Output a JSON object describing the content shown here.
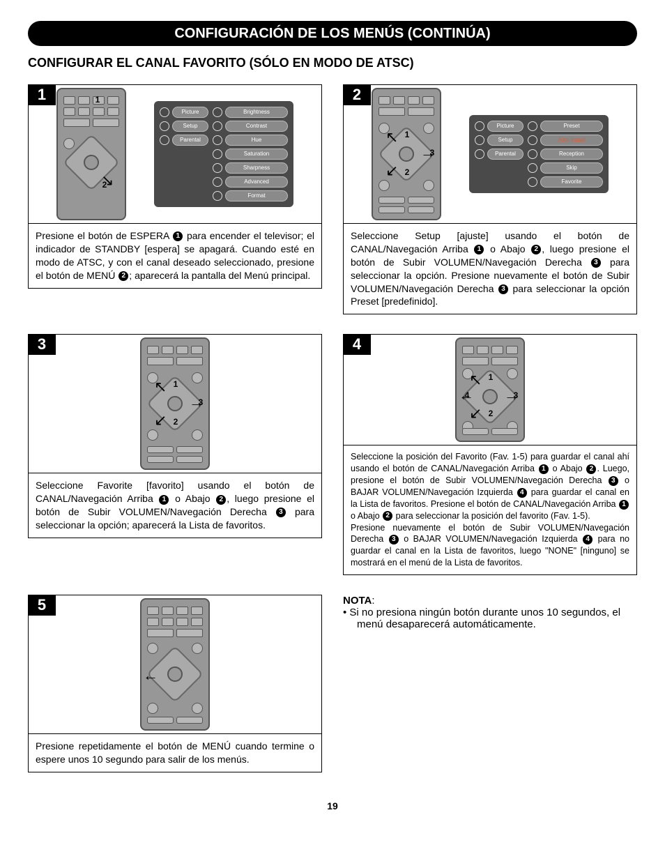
{
  "header_title": "CONFIGURACIÓN DE LOS MENÚS (CONTINÚA)",
  "section_title": "CONFIGURAR EL CANAL FAVORITO (SÓLO EN MODO DE ATSC)",
  "colors": {
    "header_bg": "#000000",
    "header_text": "#ffffff",
    "page_bg": "#ffffff",
    "remote_body": "#979797",
    "osd_bg": "#4a4a4a",
    "osd_pill_bg": "#8a8a8a",
    "osd_pill_text": "#ffffff",
    "osd_highlight_text": "#d06040"
  },
  "typography": {
    "header_fontsize": 20,
    "section_fontsize": 18,
    "caption_fontsize": 14,
    "note_fontsize": 15
  },
  "steps": [
    {
      "num": "1",
      "osd_left": [
        "Picture",
        "Setup",
        "Parental"
      ],
      "osd_right": [
        "Brightness",
        "Contrast",
        "Hue",
        "Saturation",
        "Sharpness",
        "Advanced",
        "Format"
      ],
      "caption_parts": [
        "Presione el botón de ESPERA ",
        "1",
        " para encender el televisor; el indicador de STANDBY [espera] se apagará. Cuando esté en modo de ATSC, y con el canal deseado seleccionado, presione el botón de MENÚ ",
        "2",
        "; aparecerá la pantalla del Menú principal."
      ]
    },
    {
      "num": "2",
      "osd_left": [
        "Picture",
        "Setup",
        "Parental"
      ],
      "osd_right": [
        "Preset",
        "Auto Install",
        "Reception",
        "Skip",
        "Favorite"
      ],
      "caption_parts": [
        "Seleccione Setup [ajuste] usando el botón de CANAL/Navegación Arriba ",
        "1",
        " o Abajo ",
        "2",
        ", luego presione el botón de Subir VOLUMEN/Navegación Derecha ",
        "3",
        " para seleccionar la opción. Presione nuevamente el botón de Subir VOLUMEN/Navegación Derecha ",
        "3",
        " para seleccionar la opción Preset [predefinido]."
      ]
    },
    {
      "num": "3",
      "caption_parts": [
        "Seleccione Favorite [favorito] usando el botón de CANAL/Navegación Arriba ",
        "1",
        " o Abajo ",
        "2",
        ", luego presione el botón de Subir VOLUMEN/Navegación Derecha ",
        "3",
        " para seleccionar la opción; aparecerá la Lista de favoritos."
      ]
    },
    {
      "num": "4",
      "caption_parts": [
        "Seleccione la posición del Favorito (Fav. 1-5) para guardar el canal ahí usando el botón de CANAL/Navegación Arriba ",
        "1",
        " o Abajo ",
        "2",
        ". Luego, presione el botón de Subir VOLUMEN/Navegación Derecha ",
        "3",
        " o BAJAR VOLUMEN/Navegación Izquierda ",
        "4",
        " para guardar el canal en la Lista de favoritos. Presione el botón de CANAL/Navegación Arriba ",
        "1",
        " o Abajo ",
        "2",
        " para seleccionar la posición del favorito (Fav. 1-5).\nPresione nuevamente el botón de Subir VOLUMEN/Navegación Derecha ",
        "3",
        " o BAJAR VOLUMEN/Navegación Izquierda ",
        "4",
        " para no guardar el canal en la Lista de favoritos, luego \"NONE\" [ninguno] se mostrará en el menú de la Lista de favoritos."
      ]
    },
    {
      "num": "5",
      "caption_parts": [
        "Presione repetidamente el botón de MENÚ cuando termine o espere unos 10 segundo para salir de los menús."
      ]
    }
  ],
  "note": {
    "label": "NOTA",
    "items": [
      "Si no presiona ningún botón durante unos 10 segundos, el menú desaparecerá automáticamente."
    ]
  },
  "page_number": "19"
}
